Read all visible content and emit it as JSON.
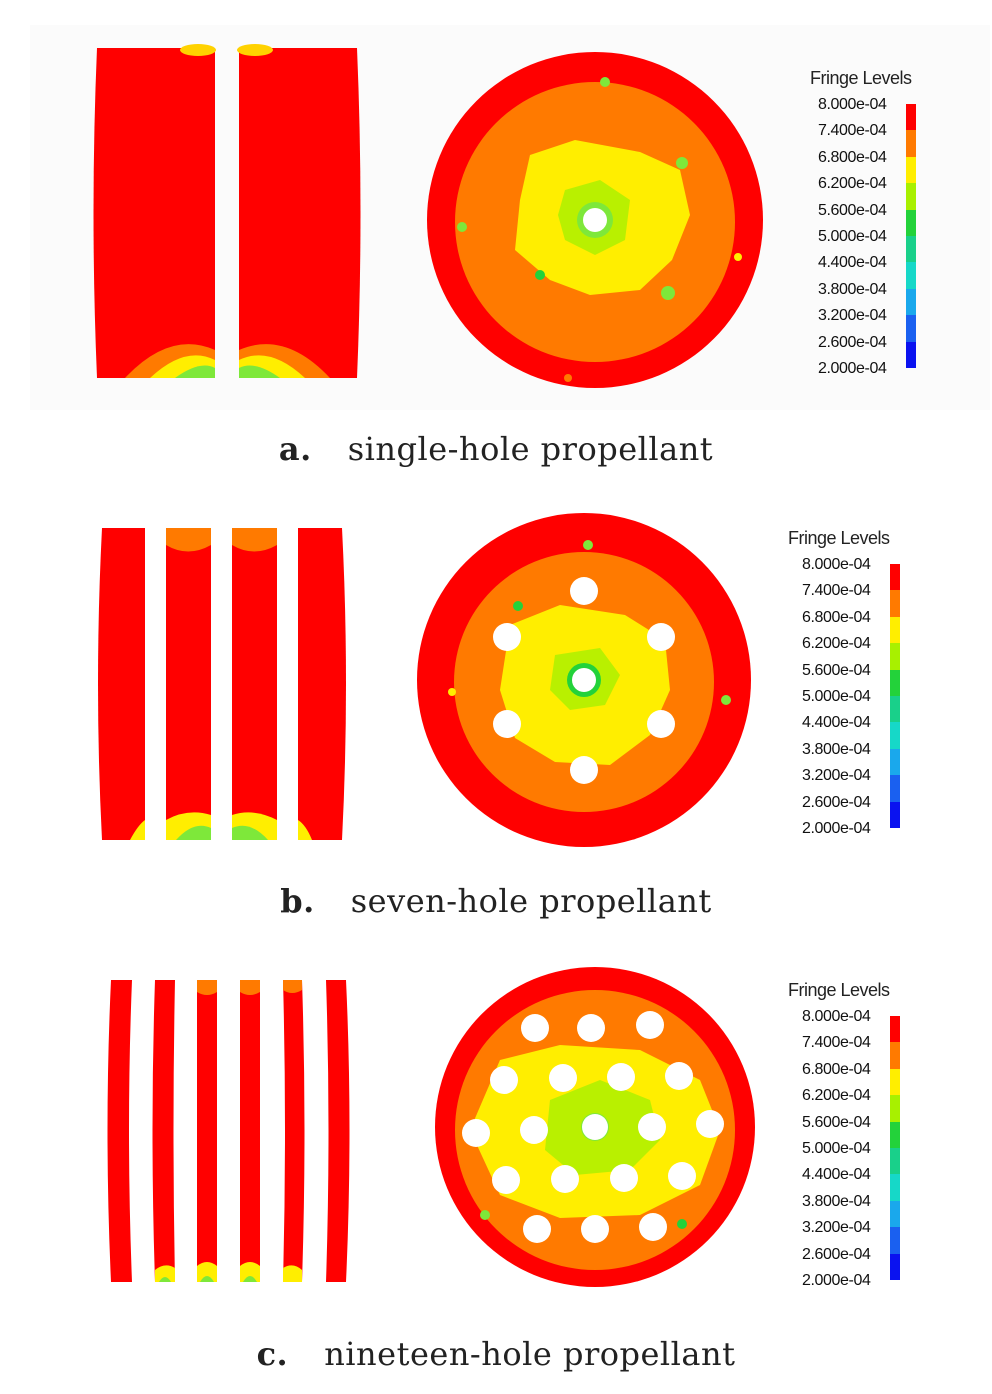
{
  "legend": {
    "title": "Fringe Levels",
    "values": [
      "8.000e-04",
      "7.400e-04",
      "6.800e-04",
      "6.200e-04",
      "5.600e-04",
      "5.000e-04",
      "4.400e-04",
      "3.800e-04",
      "3.200e-04",
      "2.600e-04",
      "2.000e-04"
    ],
    "colors": [
      "#ff0000",
      "#ff7a00",
      "#ffee00",
      "#a8f000",
      "#23d23a",
      "#19d08a",
      "#16d8c8",
      "#1aa8ec",
      "#1a60f0",
      "#0a12f0"
    ]
  },
  "panels": [
    {
      "letter": "a.",
      "label": "single-hole propellant"
    },
    {
      "letter": "b.",
      "label": "seven-hole propellant"
    },
    {
      "letter": "c.",
      "label": "nineteen-hole propellant"
    }
  ]
}
